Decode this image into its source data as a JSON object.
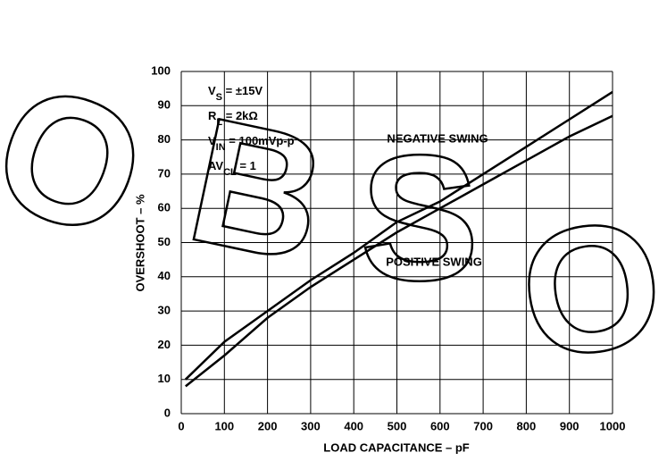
{
  "chart_data": {
    "type": "line",
    "x_label": "LOAD CAPACITANCE – pF",
    "y_label": "OVERSHOOT – %",
    "annotations": [
      {
        "main": "V",
        "sub": "S",
        "rest": " = ±15V"
      },
      {
        "main": "R",
        "sub": "L",
        "rest": " = 2kΩ"
      },
      {
        "main": "V",
        "sub": "IN",
        "rest": " = 100mVp-p"
      },
      {
        "main": "AV",
        "sub": "CL",
        "rest": " = 1"
      }
    ],
    "watermark": [
      "O",
      "B",
      "S",
      "O"
    ],
    "x": [
      10,
      100,
      200,
      300,
      400,
      500,
      600,
      700,
      800,
      900,
      1000
    ],
    "series": [
      {
        "name": "NEGATIVE SWING",
        "color": "#000000",
        "values": [
          10,
          21,
          30,
          39,
          47,
          56,
          62,
          70,
          78,
          86,
          94
        ]
      },
      {
        "name": "POSITIVE SWING",
        "color": "#000000",
        "values": [
          8,
          17,
          28,
          37,
          45,
          53,
          60,
          67,
          74,
          81,
          87
        ]
      }
    ],
    "xlim": [
      0,
      1000
    ],
    "xticks": [
      0,
      100,
      200,
      300,
      400,
      500,
      600,
      700,
      800,
      900,
      1000
    ],
    "ylim": [
      0,
      100
    ],
    "yticks": [
      0,
      10,
      20,
      30,
      40,
      50,
      60,
      70,
      80,
      90,
      100
    ],
    "grid": true
  }
}
